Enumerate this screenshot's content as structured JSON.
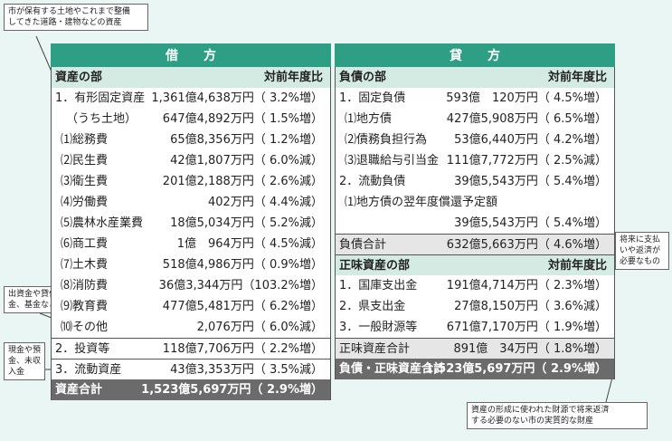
{
  "callouts": {
    "top_left": "市が保有する土地やこれまで整備\nしてきた道路・建物などの資産",
    "mid_left": "出資金や貸付\n金、基金など",
    "low_left": "現金や預\n金、未収\n入金",
    "right_mid": "将来に支払\nいや返済が\n必要なもの",
    "bottom_right": "資産の形成に使われた財源で将来返済\nする必要のない市の実質的な財産"
  },
  "debit": {
    "band": "借方",
    "header_label": "資産の部",
    "header_right": "対前年度比",
    "rows": [
      {
        "label": "1．有形固定資産",
        "value": "1,361億4,638万円（ 3.2%増）"
      },
      {
        "label": "（うち土地）",
        "value": "647億4,892万円（ 1.5%増）"
      },
      {
        "label": "⑴総務費",
        "value": "65億8,356万円（ 1.2%増）"
      },
      {
        "label": "⑵民生費",
        "value": "42億1,807万円（ 6.0%減）"
      },
      {
        "label": "⑶衛生費",
        "value": "201億2,188万円（ 2.6%減）"
      },
      {
        "label": "⑷労働費",
        "value": "402万円（ 4.4%減）"
      },
      {
        "label": "⑸農林水産業費",
        "value": "18億5,034万円（ 5.2%減）"
      },
      {
        "label": "⑹商工費",
        "value": "1億　964万円（ 4.5%減）"
      },
      {
        "label": "⑺土木費",
        "value": "518億4,986万円（ 0.9%増）"
      },
      {
        "label": "⑻消防費",
        "value": "36億3,344万円（103.2%増）"
      },
      {
        "label": "⑼教育費",
        "value": "477億5,481万円（ 6.2%増）"
      },
      {
        "label": "⑽その他",
        "value": "2,076万円（ 6.0%減）"
      },
      {
        "label": "2．投資等",
        "value": "118億7,706万円（ 2.2%増）"
      },
      {
        "label": "3．流動資産",
        "value": "43億3,353万円（ 3.5%減）"
      }
    ],
    "total_label": "資産合計",
    "total_value": "1,523億5,697万円（ 2.9%増）"
  },
  "credit": {
    "band": "貸方",
    "header_label": "負債の部",
    "header_right": "対前年度比",
    "liab_rows": [
      {
        "label": "1．固定負債",
        "value": "593億　120万円（ 4.5%増）"
      },
      {
        "label": "⑴地方債",
        "value": "427億5,908万円（ 6.5%増）"
      },
      {
        "label": "⑵債務負担行為",
        "value": "53億6,440万円（ 4.2%増）"
      },
      {
        "label": "⑶退職給与引当金",
        "value": "111億7,772万円（ 2.5%減）"
      },
      {
        "label": "2．流動負債",
        "value": "39億5,543万円（ 5.4%増）"
      },
      {
        "label": "⑴地方債の翌年度償還予定額",
        "value": ""
      },
      {
        "label": "",
        "value": "39億5,543万円（ 5.4%増）"
      }
    ],
    "liab_total_label": "負債合計",
    "liab_total_value": "632億5,663万円（ 4.6%増）",
    "equity_header_label": "正味資産の部",
    "equity_header_right": "対前年度比",
    "equity_rows": [
      {
        "label": "1．国庫支出金",
        "value": "191億4,714万円（ 2.3%増）"
      },
      {
        "label": "2．県支出金",
        "value": "27億8,150万円（ 3.6%減）"
      },
      {
        "label": "3．一般財源等",
        "value": "671億7,170万円（ 1.9%増）"
      }
    ],
    "equity_total_label": "正味資産合計",
    "equity_total_value": "891億　34万円（ 1.8%増）",
    "grand_total_label": "負債・正味資産合計",
    "grand_total_value": "1,523億5,697万円（ 2.9%増）"
  }
}
